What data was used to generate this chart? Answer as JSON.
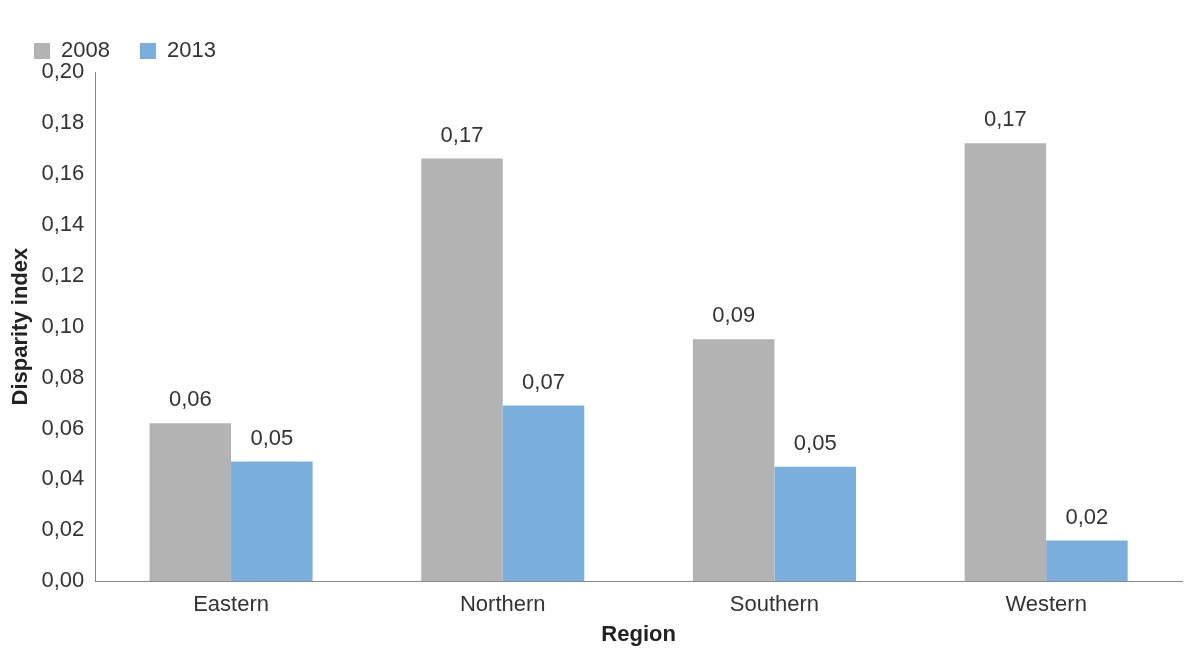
{
  "chart_data": {
    "type": "bar",
    "xlabel": "Region",
    "ylabel": "Disparity index",
    "categories": [
      "Eastern",
      "Northern",
      "Southern",
      "Western"
    ],
    "series": [
      {
        "name": "2008",
        "color": "#b3b3b3",
        "values": [
          0.062,
          0.166,
          0.095,
          0.172
        ],
        "value_labels": [
          "0,06",
          "0,17",
          "0,09",
          "0,17"
        ]
      },
      {
        "name": "2013",
        "color": "#7aaedc",
        "values": [
          0.047,
          0.069,
          0.045,
          0.016
        ],
        "value_labels": [
          "0,05",
          "0,07",
          "0,05",
          "0,02"
        ]
      }
    ],
    "ylim": [
      0,
      0.2
    ],
    "yticks": [
      {
        "value": 0,
        "label": "0,00"
      },
      {
        "value": 0.02,
        "label": "0,02"
      },
      {
        "value": 0.04,
        "label": "0,04"
      },
      {
        "value": 0.06,
        "label": "0,06"
      },
      {
        "value": 0.08,
        "label": "0,08"
      },
      {
        "value": 0.1,
        "label": "0,10"
      },
      {
        "value": 0.12,
        "label": "0,12"
      },
      {
        "value": 0.14,
        "label": "0,14"
      },
      {
        "value": 0.16,
        "label": "0,16"
      },
      {
        "value": 0.18,
        "label": "0,18"
      },
      {
        "value": 0.2,
        "label": "0,20"
      }
    ],
    "grid": false,
    "legend": "top left"
  }
}
